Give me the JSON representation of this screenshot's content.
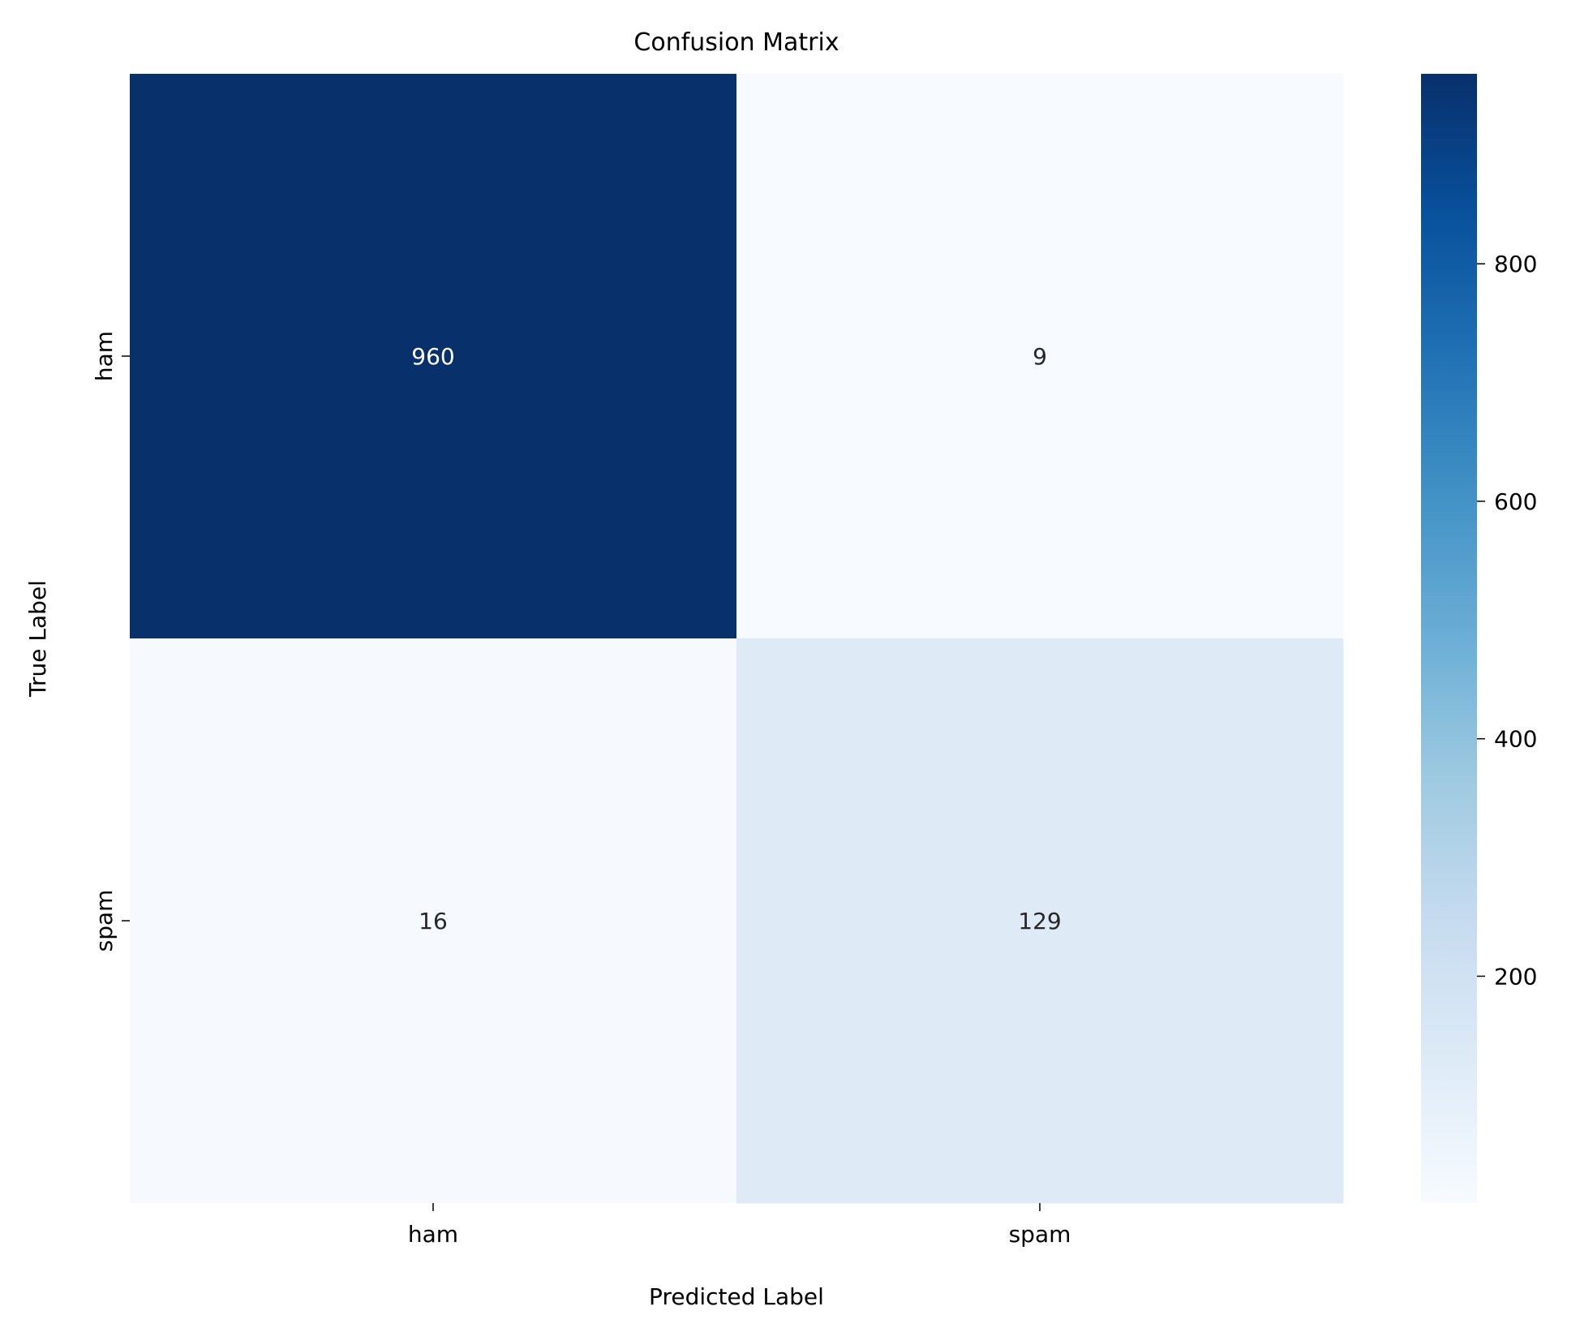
{
  "chart_data": {
    "type": "heatmap",
    "title": "Confusion Matrix",
    "xlabel": "Predicted Label",
    "ylabel": "True Label",
    "x_categories": [
      "ham",
      "spam"
    ],
    "y_categories": [
      "ham",
      "spam"
    ],
    "values": [
      [
        960,
        9
      ],
      [
        16,
        129
      ]
    ],
    "colormap": "Blues",
    "colorbar": {
      "range": [
        9,
        960
      ],
      "ticks": [
        200,
        400,
        600,
        800
      ]
    },
    "legend_placement": "right",
    "grid": false,
    "colors": {
      "low": "#f7fbff",
      "high": "#08306b",
      "annot_dark": "#262626",
      "annot_light": "#ffffff"
    }
  }
}
